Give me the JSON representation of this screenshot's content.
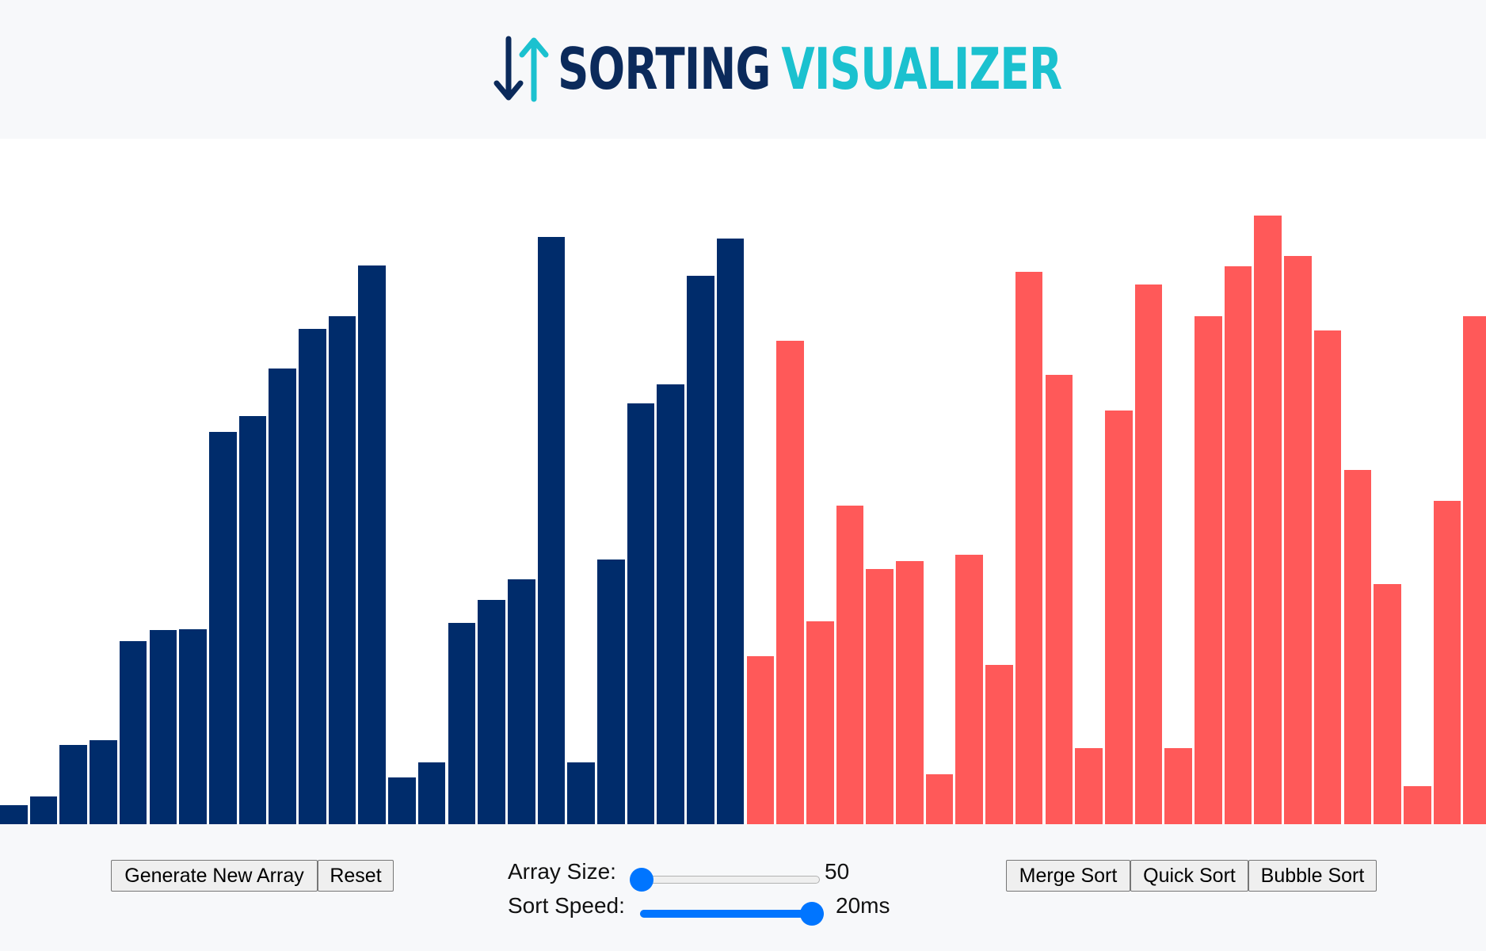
{
  "header": {
    "title_word1": "SORTING",
    "title_word2": "VISUALIZER",
    "logo_icon": "sort-arrows-icon",
    "colors": {
      "word1": "#0b2a5b",
      "word2": "#1bc1cf"
    }
  },
  "visualizer": {
    "max_value": 100,
    "colors": {
      "sorted": "#002c6b",
      "unsorted": "#ff5959"
    },
    "bars": [
      {
        "value": 3.2,
        "state": "sorted"
      },
      {
        "value": 4.6,
        "state": "sorted"
      },
      {
        "value": 13.2,
        "state": "sorted"
      },
      {
        "value": 14.0,
        "state": "sorted"
      },
      {
        "value": 30.6,
        "state": "sorted"
      },
      {
        "value": 32.4,
        "state": "sorted"
      },
      {
        "value": 32.6,
        "state": "sorted"
      },
      {
        "value": 65.6,
        "state": "sorted"
      },
      {
        "value": 68.2,
        "state": "sorted"
      },
      {
        "value": 76.1,
        "state": "sorted"
      },
      {
        "value": 82.8,
        "state": "sorted"
      },
      {
        "value": 84.9,
        "state": "sorted"
      },
      {
        "value": 93.4,
        "state": "sorted"
      },
      {
        "value": 7.8,
        "state": "sorted"
      },
      {
        "value": 10.4,
        "state": "sorted"
      },
      {
        "value": 33.7,
        "state": "sorted"
      },
      {
        "value": 37.5,
        "state": "sorted"
      },
      {
        "value": 40.9,
        "state": "sorted"
      },
      {
        "value": 98.1,
        "state": "sorted"
      },
      {
        "value": 10.4,
        "state": "sorted"
      },
      {
        "value": 44.2,
        "state": "sorted"
      },
      {
        "value": 70.3,
        "state": "sorted"
      },
      {
        "value": 73.5,
        "state": "sorted"
      },
      {
        "value": 91.6,
        "state": "sorted"
      },
      {
        "value": 97.9,
        "state": "sorted"
      },
      {
        "value": 28.1,
        "state": "unsorted"
      },
      {
        "value": 80.8,
        "state": "unsorted"
      },
      {
        "value": 33.9,
        "state": "unsorted"
      },
      {
        "value": 53.3,
        "state": "unsorted"
      },
      {
        "value": 42.6,
        "state": "unsorted"
      },
      {
        "value": 44.0,
        "state": "unsorted"
      },
      {
        "value": 8.4,
        "state": "unsorted"
      },
      {
        "value": 45.0,
        "state": "unsorted"
      },
      {
        "value": 26.6,
        "state": "unsorted"
      },
      {
        "value": 92.3,
        "state": "unsorted"
      },
      {
        "value": 75.1,
        "state": "unsorted"
      },
      {
        "value": 12.7,
        "state": "unsorted"
      },
      {
        "value": 69.2,
        "state": "unsorted"
      },
      {
        "value": 90.2,
        "state": "unsorted"
      },
      {
        "value": 12.7,
        "state": "unsorted"
      },
      {
        "value": 84.9,
        "state": "unsorted"
      },
      {
        "value": 93.2,
        "state": "unsorted"
      },
      {
        "value": 101.7,
        "state": "unsorted"
      },
      {
        "value": 95.0,
        "state": "unsorted"
      },
      {
        "value": 82.5,
        "state": "unsorted"
      },
      {
        "value": 59.2,
        "state": "unsorted"
      },
      {
        "value": 40.1,
        "state": "unsorted"
      },
      {
        "value": 6.3,
        "state": "unsorted"
      },
      {
        "value": 54.0,
        "state": "unsorted"
      },
      {
        "value": 84.9,
        "state": "unsorted"
      }
    ]
  },
  "controls": {
    "generate_label": "Generate New Array",
    "reset_label": "Reset",
    "array_size_label": "Array Size:",
    "array_size_value": "50",
    "array_size_fraction": 0.0,
    "sort_speed_label": "Sort Speed:",
    "sort_speed_value": "20ms",
    "sort_speed_fraction": 1.0,
    "merge_label": "Merge Sort",
    "quick_label": "Quick Sort",
    "bubble_label": "Bubble Sort",
    "accent_color": "#0075ff"
  }
}
